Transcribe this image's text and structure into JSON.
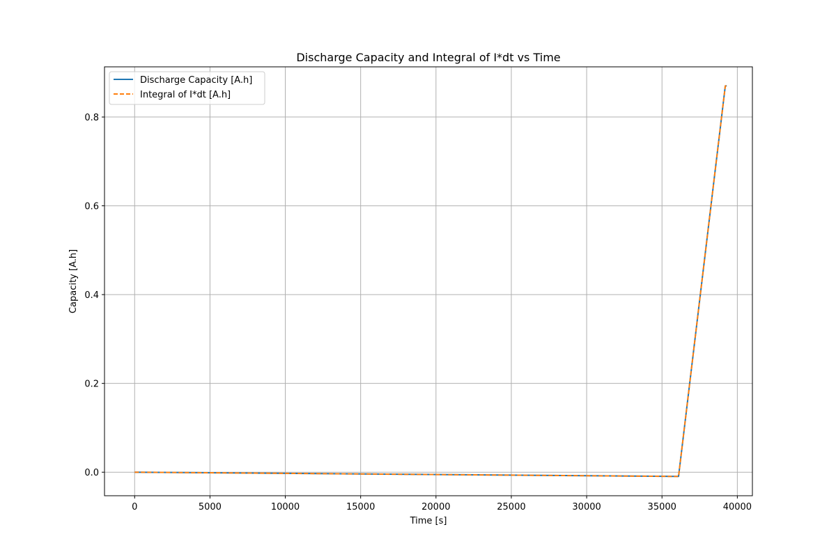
{
  "chart_data": {
    "type": "line",
    "title": "Discharge Capacity and Integral of I*dt vs Time",
    "xlabel": "Time [s]",
    "ylabel": "Capacity [A.h]",
    "xlim": [
      -2000,
      41000
    ],
    "ylim": [
      -0.053,
      0.913
    ],
    "x_ticks": [
      0,
      5000,
      10000,
      15000,
      20000,
      25000,
      30000,
      35000,
      40000
    ],
    "y_ticks": [
      0.0,
      0.2,
      0.4,
      0.6,
      0.8
    ],
    "x_tick_labels": [
      "0",
      "5000",
      "10000",
      "15000",
      "20000",
      "25000",
      "30000",
      "35000",
      "40000"
    ],
    "y_tick_labels": [
      "0.0",
      "0.2",
      "0.4",
      "0.6",
      "0.8"
    ],
    "grid": true,
    "legend_position": "top-left",
    "series": [
      {
        "name": "Discharge Capacity [A.h]",
        "color": "#1f77b4",
        "style": "solid",
        "x": [
          0,
          36000,
          36100,
          39200,
          39300
        ],
        "y": [
          0.0,
          -0.0095,
          -0.0095,
          0.87,
          0.87
        ]
      },
      {
        "name": "Integral of I*dt [A.h]",
        "color": "#ff7f0e",
        "style": "dashed",
        "x": [
          0,
          36000,
          36100,
          39200,
          39300
        ],
        "y": [
          0.0,
          -0.0095,
          -0.0095,
          0.87,
          0.87
        ]
      }
    ]
  }
}
